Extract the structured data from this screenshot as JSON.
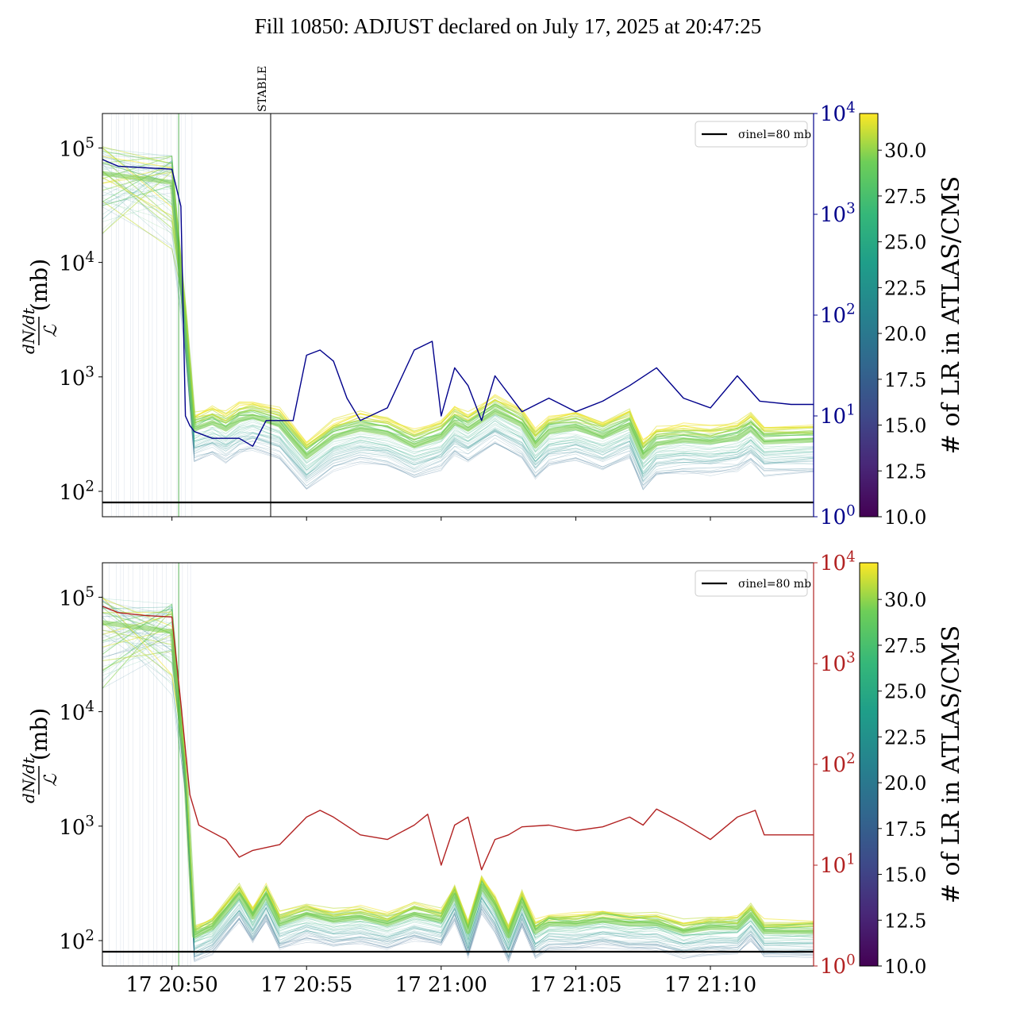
{
  "title": "Fill 10850: ADJUST declared on July 17, 2025 at 20:47:25",
  "chart_data": [
    {
      "type": "line",
      "panel": "top",
      "ylabel_fraction_numerator": "dN/dt",
      "ylabel_fraction_denominator": "ℒ",
      "ylabel_unit": "(mb)",
      "y_scale": "log",
      "ylim": [
        60,
        200000
      ],
      "y_ticks": [
        "10^2",
        "10^3",
        "10^4",
        "10^5"
      ],
      "right_axis": {
        "scale": "log",
        "ylim": [
          1,
          10000
        ],
        "ticks": [
          "10^0",
          "10^1",
          "10^2",
          "10^3",
          "10^4"
        ],
        "color": "#00008b"
      },
      "x_ticks": [],
      "annotation": "STABLE",
      "annotation_time": "20:53:40",
      "legend_entry": "σinel=80 mb",
      "legend_placement": "upper right",
      "reference_line_mb": 80,
      "right_series_color": "#00008b",
      "right_series": {
        "time": [
          "20:47:25",
          "20:48:00",
          "20:49:00",
          "20:50:00",
          "20:50:20",
          "20:50:30",
          "20:50:40",
          "20:50:50",
          "20:51:30",
          "20:52:00",
          "20:52:30",
          "20:53:00",
          "20:53:30",
          "20:54:30",
          "20:55:00",
          "20:55:30",
          "20:56:00",
          "20:56:30",
          "20:57:00",
          "20:58:00",
          "20:59:00",
          "20:59:40",
          "21:00:00",
          "21:00:30",
          "21:01:00",
          "21:01:30",
          "21:02:00",
          "21:03:00",
          "21:04:00",
          "21:05:00",
          "21:06:00",
          "21:07:00",
          "21:08:00",
          "21:09:00",
          "21:10:00",
          "21:11:00",
          "21:11:50",
          "21:13:00",
          "21:13:50"
        ],
        "values": [
          3500,
          3000,
          2900,
          2800,
          1200,
          10,
          8,
          7,
          6,
          6,
          6,
          5,
          9,
          9,
          40,
          45,
          35,
          15,
          9,
          12,
          45,
          55,
          10,
          30,
          20,
          9,
          25,
          11,
          15,
          11,
          14,
          20,
          30,
          15,
          12,
          25,
          14,
          13,
          13
        ]
      },
      "colorbar": {
        "label": "# of LR in ATLAS/CMS",
        "min": 10.0,
        "max": 32.0,
        "ticks": [
          "10.0",
          "12.5",
          "15.0",
          "17.5",
          "20.0",
          "22.5",
          "25.0",
          "27.5",
          "30.0"
        ],
        "colormap": "viridis"
      },
      "band_median": {
        "time": [
          "20:47:25",
          "20:50:00",
          "20:50:30",
          "20:50:50",
          "20:51:30",
          "20:52:00",
          "20:52:30",
          "20:53:00",
          "20:54:00",
          "20:55:00",
          "20:56:00",
          "20:57:00",
          "20:58:00",
          "20:59:00",
          "21:00:00",
          "21:00:30",
          "21:01:00",
          "21:02:00",
          "21:03:00",
          "21:03:30",
          "21:04:00",
          "21:05:00",
          "21:06:00",
          "21:07:00",
          "21:07:30",
          "21:08:00",
          "21:09:00",
          "21:10:00",
          "21:11:00",
          "21:11:30",
          "21:12:00",
          "21:13:50"
        ],
        "values": [
          60000,
          50000,
          3000,
          350,
          400,
          350,
          420,
          450,
          380,
          200,
          300,
          350,
          320,
          250,
          300,
          400,
          350,
          500,
          380,
          250,
          330,
          360,
          300,
          380,
          200,
          260,
          280,
          270,
          290,
          350,
          270,
          280
        ]
      }
    },
    {
      "type": "line",
      "panel": "bottom",
      "ylabel_fraction_numerator": "dN/dt",
      "ylabel_fraction_denominator": "ℒ",
      "ylabel_unit": "(mb)",
      "y_scale": "log",
      "ylim": [
        60,
        200000
      ],
      "y_ticks": [
        "10^2",
        "10^3",
        "10^4",
        "10^5"
      ],
      "right_axis": {
        "scale": "log",
        "ylim": [
          1,
          10000
        ],
        "ticks": [
          "10^0",
          "10^1",
          "10^2",
          "10^3",
          "10^4"
        ],
        "color": "#b22222"
      },
      "x_ticks": [
        "17 20:50",
        "17 20:55",
        "17 21:00",
        "17 21:05",
        "17 21:10"
      ],
      "legend_entry": "σinel=80 mb",
      "legend_placement": "upper right",
      "reference_line_mb": 80,
      "right_series_color": "#b22222",
      "right_series": {
        "time": [
          "20:47:25",
          "20:48:00",
          "20:49:00",
          "20:50:00",
          "20:50:20",
          "20:50:40",
          "20:51:00",
          "20:52:00",
          "20:52:30",
          "20:53:00",
          "20:54:00",
          "20:55:00",
          "20:55:30",
          "20:56:00",
          "20:57:00",
          "20:58:00",
          "20:59:00",
          "20:59:30",
          "21:00:00",
          "21:00:30",
          "21:01:00",
          "21:01:30",
          "21:02:00",
          "21:02:30",
          "21:03:00",
          "21:04:00",
          "21:05:00",
          "21:06:00",
          "21:07:00",
          "21:07:30",
          "21:08:00",
          "21:09:00",
          "21:10:00",
          "21:11:00",
          "21:11:40",
          "21:12:00",
          "21:13:50"
        ],
        "values": [
          3700,
          3200,
          3000,
          2900,
          400,
          50,
          25,
          18,
          12,
          14,
          16,
          30,
          35,
          30,
          20,
          18,
          25,
          32,
          10,
          25,
          30,
          9,
          18,
          20,
          24,
          25,
          22,
          24,
          30,
          25,
          36,
          26,
          18,
          30,
          35,
          20,
          20
        ]
      },
      "colorbar": {
        "label": "# of LR in ATLAS/CMS",
        "min": 10.0,
        "max": 32.0,
        "ticks": [
          "10.0",
          "12.5",
          "15.0",
          "17.5",
          "20.0",
          "22.5",
          "25.0",
          "27.5",
          "30.0"
        ],
        "colormap": "viridis"
      },
      "band_median": {
        "time": [
          "20:47:25",
          "20:50:00",
          "20:50:30",
          "20:50:50",
          "20:51:30",
          "20:52:30",
          "20:53:00",
          "20:53:30",
          "20:54:00",
          "20:55:00",
          "20:56:00",
          "20:57:00",
          "20:58:00",
          "20:59:00",
          "21:00:00",
          "21:00:30",
          "21:01:00",
          "21:01:30",
          "21:02:00",
          "21:02:30",
          "21:03:00",
          "21:03:30",
          "21:04:00",
          "21:05:00",
          "21:06:00",
          "21:07:00",
          "21:08:00",
          "21:09:00",
          "21:10:00",
          "21:11:00",
          "21:11:30",
          "21:12:00",
          "21:13:50"
        ],
        "values": [
          60000,
          50000,
          3000,
          110,
          130,
          250,
          160,
          250,
          140,
          170,
          150,
          160,
          140,
          170,
          150,
          250,
          120,
          300,
          200,
          110,
          220,
          120,
          140,
          140,
          150,
          140,
          140,
          120,
          130,
          130,
          170,
          120,
          120
        ]
      }
    }
  ]
}
